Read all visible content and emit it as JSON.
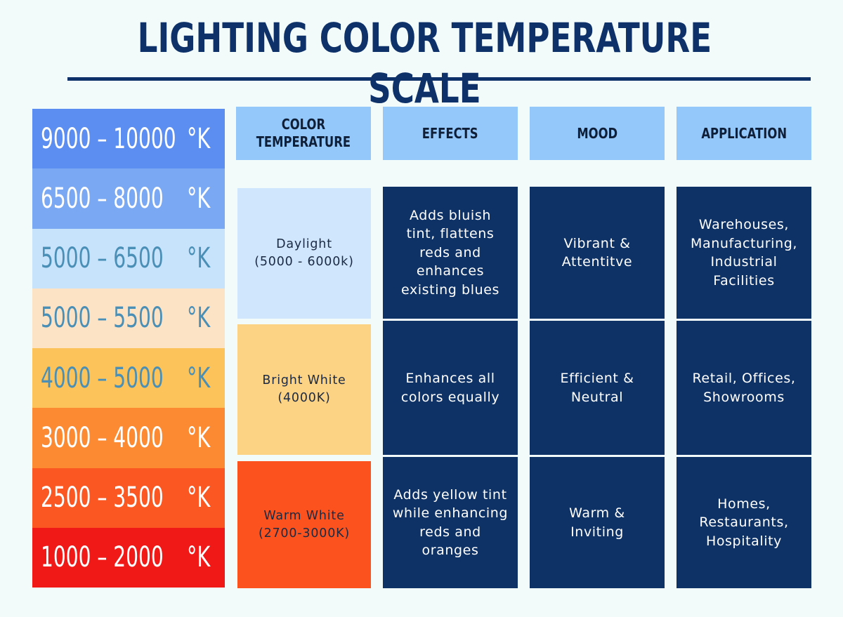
{
  "title": "LIGHTING COLOR TEMPERATURE SCALE",
  "scale": [
    {
      "range": "9000 – 10000",
      "unit": "°K",
      "bg": "#5b8ef0",
      "fg": "#ffffff"
    },
    {
      "range": "6500 – 8000",
      "unit": "°K",
      "bg": "#7aa8f2",
      "fg": "#ffffff"
    },
    {
      "range": "5000 – 6500",
      "unit": "°K",
      "bg": "#c7e2fb",
      "fg": "#4a8fb6"
    },
    {
      "range": "5000 – 5500",
      "unit": "°K",
      "bg": "#fde3c6",
      "fg": "#4a8fb6"
    },
    {
      "range": "4000 – 5000",
      "unit": "°K",
      "bg": "#fbc35a",
      "fg": "#4a8fb6"
    },
    {
      "range": "3000 – 4000",
      "unit": "°K",
      "bg": "#fb8a32",
      "fg": "#ffffff"
    },
    {
      "range": "2500 – 3500",
      "unit": "°K",
      "bg": "#fa5722",
      "fg": "#ffffff"
    },
    {
      "range": "1000  – 2000",
      "unit": "°K",
      "bg": "#f11818",
      "fg": "#ffffff"
    }
  ],
  "headers": {
    "color_temperature": "COLOR\nTEMPERATURE",
    "effects": "EFFECTS",
    "mood": "MOOD",
    "application": "APPLICATION"
  },
  "rows": [
    {
      "temperature": "Daylight\n(5000 - 6000k)",
      "temperature_bg": "#cfe6fc",
      "effects": "Adds bluish\ntint, flattens\nreds and\nenhances\nexisting blues",
      "mood": "Vibrant &\nAttentitve",
      "application": "Warehouses,\nManufacturing,\nIndustrial\nFacilities"
    },
    {
      "temperature": "Bright White\n(4000K)",
      "temperature_bg": "#fcd385",
      "effects": "Enhances all\ncolors equally",
      "mood": "Efficient &\nNeutral",
      "application": "Retail, Offices,\nShowrooms"
    },
    {
      "temperature": "Warm White\n(2700-3000K)",
      "temperature_bg": "#fc531e",
      "effects": "Adds yellow tint\nwhile enhancing\nreds and\noranges",
      "mood": "Warm &\nInviting",
      "application": "Homes,\nRestaurants,\nHospitality"
    }
  ],
  "colors": {
    "title": "#0d3168",
    "header_bg": "#94c8fb",
    "dark_cell": "#0e3266",
    "background": "#f2fafa"
  }
}
